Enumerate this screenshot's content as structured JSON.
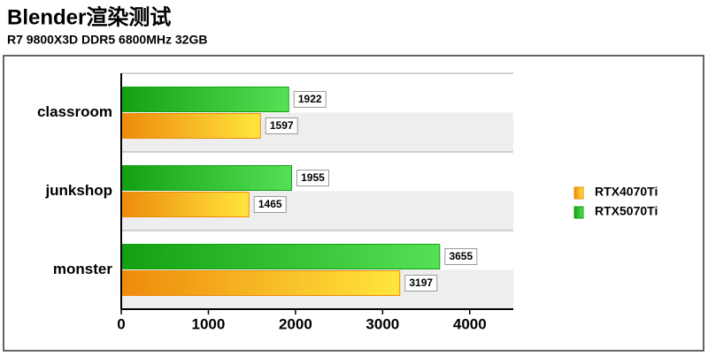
{
  "chart_data": {
    "type": "bar",
    "orientation": "horizontal",
    "title": "Blender渲染测试",
    "subtitle": "R7 9800X3D DDR5 6800MHz 32GB",
    "categories": [
      "classroom",
      "junkshop",
      "monster"
    ],
    "series": [
      {
        "name": "RTX4070Ti",
        "color": "#ee8a0c",
        "values": [
          1597,
          1465,
          3197
        ]
      },
      {
        "name": "RTX5070Ti",
        "color": "#12a012",
        "values": [
          1922,
          1955,
          3655
        ]
      }
    ],
    "xlim": [
      0,
      4500
    ],
    "xticks": [
      0,
      1000,
      2000,
      3000,
      4000
    ],
    "grid": false,
    "legend": "right"
  }
}
